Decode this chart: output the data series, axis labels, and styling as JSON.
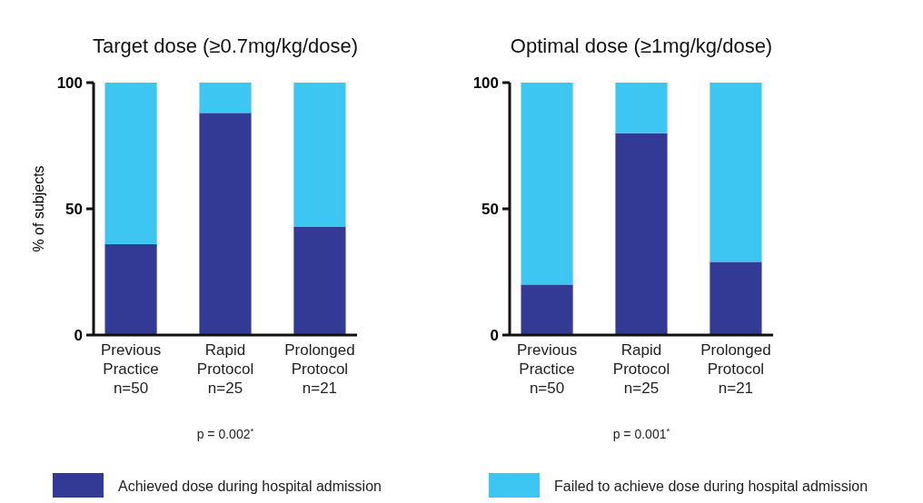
{
  "chart_data": [
    {
      "type": "bar",
      "title": "Target dose (≥0.7mg/kg/dose)",
      "ylabel": "% of subjects",
      "categories": [
        "Previous\nPractice\nn=50",
        "Rapid\nProtocol\nn=25",
        "Prolonged\nProtocol\nn=21"
      ],
      "stacked": true,
      "ylim": [
        0,
        100
      ],
      "yticks": [
        0,
        50,
        100
      ],
      "legend": "bottom",
      "annotations": [
        "p = 0.002$^{*}$"
      ],
      "series": [
        {
          "name": "Achieved dose during hospital admission",
          "color": "#333a96",
          "values": [
            36,
            88,
            43
          ]
        },
        {
          "name": "Failed to achieve dose during hospital admission",
          "color": "#3ec6f3",
          "values": [
            64,
            12,
            57
          ]
        }
      ]
    },
    {
      "type": "bar",
      "title": "Optimal dose (≥1mg/kg/dose)",
      "categories": [
        "Previous\nPractice\nn=50",
        "Rapid\nProtocol\nn=25",
        "Prolonged\nProtocol\nn=21"
      ],
      "stacked": true,
      "ylim": [
        0,
        100
      ],
      "yticks": [
        0,
        50,
        100
      ],
      "annotations": [
        "p = 0.001$^{*}$"
      ],
      "series": [
        {
          "color": "#333a96",
          "values": [
            20,
            80,
            29
          ]
        },
        {
          "color": "#3ec6f3",
          "values": [
            80,
            20,
            71
          ]
        }
      ]
    }
  ]
}
